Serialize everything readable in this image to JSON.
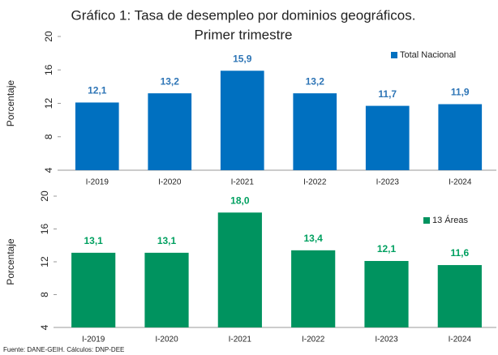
{
  "title": [
    "Gráfico 1: Tasa de desempleo por dominios geográficos.",
    "Primer trimestre"
  ],
  "source": "Fuente: DANE-GEIH. Cálculos: DNP-DEE",
  "chart_data": [
    {
      "type": "bar",
      "y_label": "Porcentaje",
      "categories": [
        "I-2019",
        "I-2020",
        "I-2021",
        "I-2022",
        "I-2023",
        "I-2024"
      ],
      "series": [
        {
          "name": "Total Nacional",
          "color": "#0070c0",
          "label_color": "#2e75b6",
          "values": [
            12.1,
            13.2,
            15.9,
            13.2,
            11.7,
            11.9
          ],
          "value_labels": [
            "12,1",
            "13,2",
            "15,9",
            "13,2",
            "11,7",
            "11,9"
          ]
        }
      ],
      "ylim": [
        4,
        20
      ],
      "yticks": [
        4,
        8,
        12,
        16,
        20
      ],
      "legend": "upper right"
    },
    {
      "type": "bar",
      "y_label": "Porcentaje",
      "categories": [
        "I-2019",
        "I-2020",
        "I-2021",
        "I-2022",
        "I-2023",
        "I-2024"
      ],
      "series": [
        {
          "name": "13 Áreas",
          "color": "#00935f",
          "label_color": "#00a060",
          "values": [
            13.1,
            13.1,
            18.0,
            13.4,
            12.1,
            11.6
          ],
          "value_labels": [
            "13,1",
            "13,1",
            "18,0",
            "13,4",
            "12,1",
            "11,6"
          ]
        }
      ],
      "ylim": [
        4,
        20
      ],
      "yticks": [
        4,
        8,
        12,
        16,
        20
      ],
      "legend": "upper right"
    }
  ]
}
